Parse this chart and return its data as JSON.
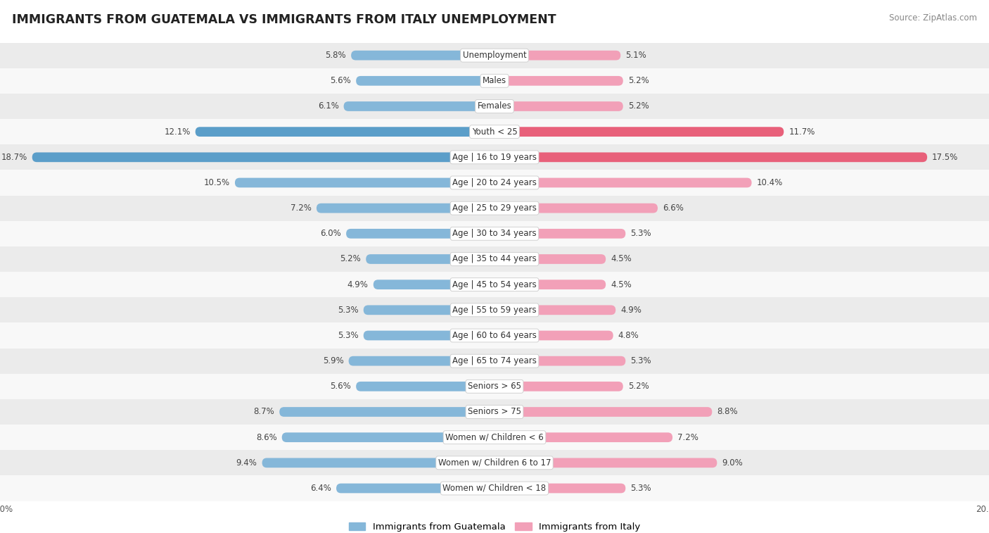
{
  "title": "IMMIGRANTS FROM GUATEMALA VS IMMIGRANTS FROM ITALY UNEMPLOYMENT",
  "source": "Source: ZipAtlas.com",
  "categories": [
    "Unemployment",
    "Males",
    "Females",
    "Youth < 25",
    "Age | 16 to 19 years",
    "Age | 20 to 24 years",
    "Age | 25 to 29 years",
    "Age | 30 to 34 years",
    "Age | 35 to 44 years",
    "Age | 45 to 54 years",
    "Age | 55 to 59 years",
    "Age | 60 to 64 years",
    "Age | 65 to 74 years",
    "Seniors > 65",
    "Seniors > 75",
    "Women w/ Children < 6",
    "Women w/ Children 6 to 17",
    "Women w/ Children < 18"
  ],
  "guatemala_values": [
    5.8,
    5.6,
    6.1,
    12.1,
    18.7,
    10.5,
    7.2,
    6.0,
    5.2,
    4.9,
    5.3,
    5.3,
    5.9,
    5.6,
    8.7,
    8.6,
    9.4,
    6.4
  ],
  "italy_values": [
    5.1,
    5.2,
    5.2,
    11.7,
    17.5,
    10.4,
    6.6,
    5.3,
    4.5,
    4.5,
    4.9,
    4.8,
    5.3,
    5.2,
    8.8,
    7.2,
    9.0,
    5.3
  ],
  "guatemala_color": "#85b7d9",
  "italy_color": "#f2a0b8",
  "guatemala_highlight_color": "#5b9ec9",
  "italy_highlight_color": "#e8607a",
  "row_bg_even": "#ebebeb",
  "row_bg_odd": "#f8f8f8",
  "bar_height": 0.38,
  "xlim": 20.0,
  "legend_guatemala": "Immigrants from Guatemala",
  "legend_italy": "Immigrants from Italy",
  "title_fontsize": 12.5,
  "source_fontsize": 8.5,
  "label_fontsize": 8.5,
  "category_fontsize": 8.5,
  "value_color": "#444444"
}
